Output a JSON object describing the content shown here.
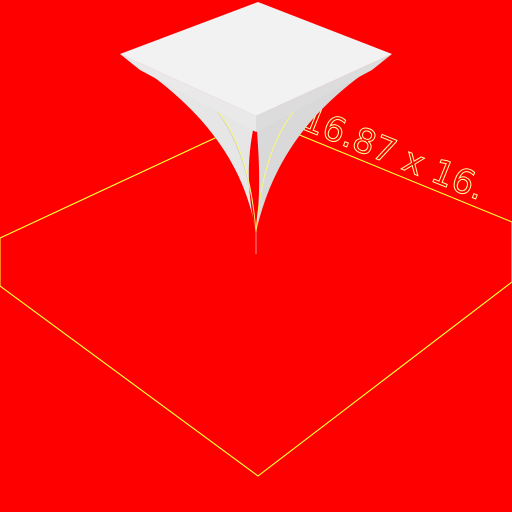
{
  "viewport": {
    "background_color": "#ff0000"
  },
  "bed": {
    "outline_color": "#ffff33",
    "dimension_label": "16.87 x 16.",
    "dimension_label_color": "#ffffa0"
  },
  "model": {
    "shape": "inverted-pyramid-spire",
    "top_face_color": "#f2f2f2",
    "left_face_color": "#e6e6e6",
    "right_face_color": "#d9d9d9",
    "edge_highlight_color": "#ffff66"
  }
}
